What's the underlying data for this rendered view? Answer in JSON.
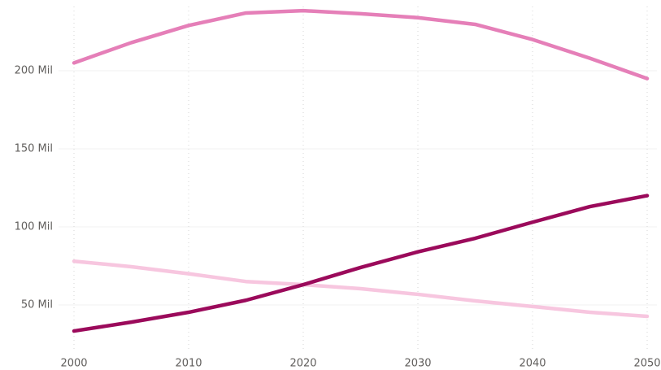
{
  "chart_data": {
    "type": "line",
    "x": [
      2000,
      2005,
      2010,
      2015,
      2020,
      2025,
      2030,
      2035,
      2040,
      2045,
      2050
    ],
    "series": [
      {
        "color": "#e57fb8",
        "values": [
          205,
          218,
          229,
          237,
          238.5,
          236.5,
          234,
          229.7,
          220,
          208,
          195
        ]
      },
      {
        "color": "#f7c6df",
        "values": [
          78,
          74.5,
          70,
          65,
          63,
          60.4,
          56.8,
          52.6,
          49,
          45.3,
          42.7
        ]
      },
      {
        "color": "#9b0a5b",
        "values": [
          33.3,
          39,
          45.3,
          53,
          63,
          74,
          84,
          92.7,
          103,
          113,
          120
        ]
      }
    ],
    "xlim": [
      2000,
      2050
    ],
    "xticks": [
      2000,
      2010,
      2020,
      2030,
      2040,
      2050
    ],
    "ylim": [
      20,
      245
    ],
    "yticks": [
      {
        "value": 50,
        "label": "50 Mil"
      },
      {
        "value": 100,
        "label": "100 Mil"
      },
      {
        "value": 150,
        "label": "150 Mil"
      },
      {
        "value": 200,
        "label": "200 Mil"
      }
    ],
    "grid": true
  }
}
